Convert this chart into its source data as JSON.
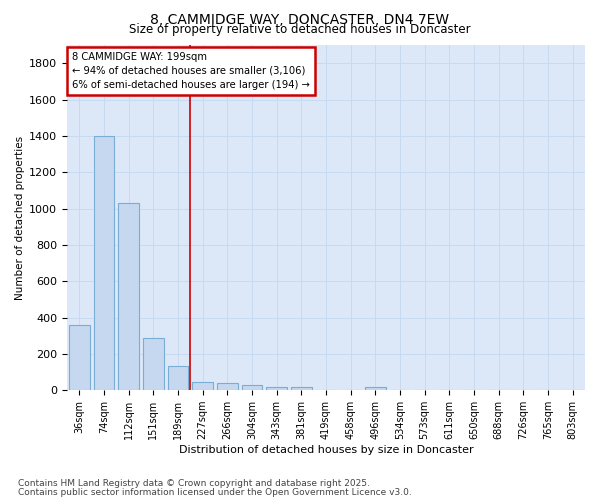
{
  "title": "8, CAMMIDGE WAY, DONCASTER, DN4 7EW",
  "subtitle": "Size of property relative to detached houses in Doncaster",
  "xlabel": "Distribution of detached houses by size in Doncaster",
  "ylabel": "Number of detached properties",
  "categories": [
    "36sqm",
    "74sqm",
    "112sqm",
    "151sqm",
    "189sqm",
    "227sqm",
    "266sqm",
    "304sqm",
    "343sqm",
    "381sqm",
    "419sqm",
    "458sqm",
    "496sqm",
    "534sqm",
    "573sqm",
    "611sqm",
    "650sqm",
    "688sqm",
    "726sqm",
    "765sqm",
    "803sqm"
  ],
  "values": [
    360,
    1400,
    1030,
    285,
    135,
    45,
    40,
    30,
    20,
    20,
    0,
    0,
    15,
    0,
    0,
    0,
    0,
    0,
    0,
    0,
    0
  ],
  "bar_color": "#c5d8f0",
  "bar_edge_color": "#7aadd4",
  "vline_x_index": 4.5,
  "vline_color": "#cc0000",
  "annotation_text": "8 CAMMIDGE WAY: 199sqm\n← 94% of detached houses are smaller (3,106)\n6% of semi-detached houses are larger (194) →",
  "annotation_box_color": "#cc0000",
  "annotation_bg": "#ffffff",
  "ylim": [
    0,
    1900
  ],
  "yticks": [
    0,
    200,
    400,
    600,
    800,
    1000,
    1200,
    1400,
    1600,
    1800
  ],
  "footnote1": "Contains HM Land Registry data © Crown copyright and database right 2025.",
  "footnote2": "Contains public sector information licensed under the Open Government Licence v3.0.",
  "grid_color": "#c8daf0",
  "bg_color": "#dce8f8",
  "fig_bg_color": "#ffffff"
}
